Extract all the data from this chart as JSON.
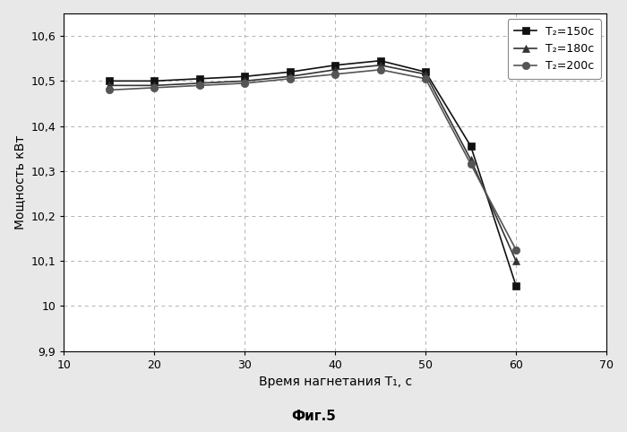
{
  "x": [
    15,
    20,
    25,
    30,
    35,
    40,
    45,
    50,
    55,
    60
  ],
  "series": [
    {
      "label": "T₂=150c",
      "marker": "s",
      "color": "#111111",
      "values": [
        10.5,
        10.5,
        10.505,
        10.51,
        10.52,
        10.535,
        10.545,
        10.52,
        10.355,
        10.045
      ]
    },
    {
      "label": "T₂=180c",
      "marker": "^",
      "color": "#333333",
      "values": [
        10.49,
        10.49,
        10.495,
        10.5,
        10.51,
        10.525,
        10.535,
        10.515,
        10.325,
        10.1
      ]
    },
    {
      "label": "T₂=200c",
      "marker": "o",
      "color": "#555555",
      "values": [
        10.48,
        10.485,
        10.49,
        10.495,
        10.505,
        10.515,
        10.525,
        10.505,
        10.315,
        10.125
      ]
    }
  ],
  "xlim": [
    10,
    70
  ],
  "ylim": [
    9.9,
    10.65
  ],
  "xticks": [
    10,
    20,
    30,
    40,
    50,
    60,
    70
  ],
  "yticks": [
    9.9,
    10.0,
    10.1,
    10.2,
    10.3,
    10.4,
    10.5,
    10.6
  ],
  "xlabel": "Время нагнетания T₁, с",
  "ylabel": "Мощность кВт",
  "caption": "Фиг.5",
  "grid_color": "#aaaaaa",
  "background_color": "#ffffff",
  "fig_bg": "#e8e8e8"
}
